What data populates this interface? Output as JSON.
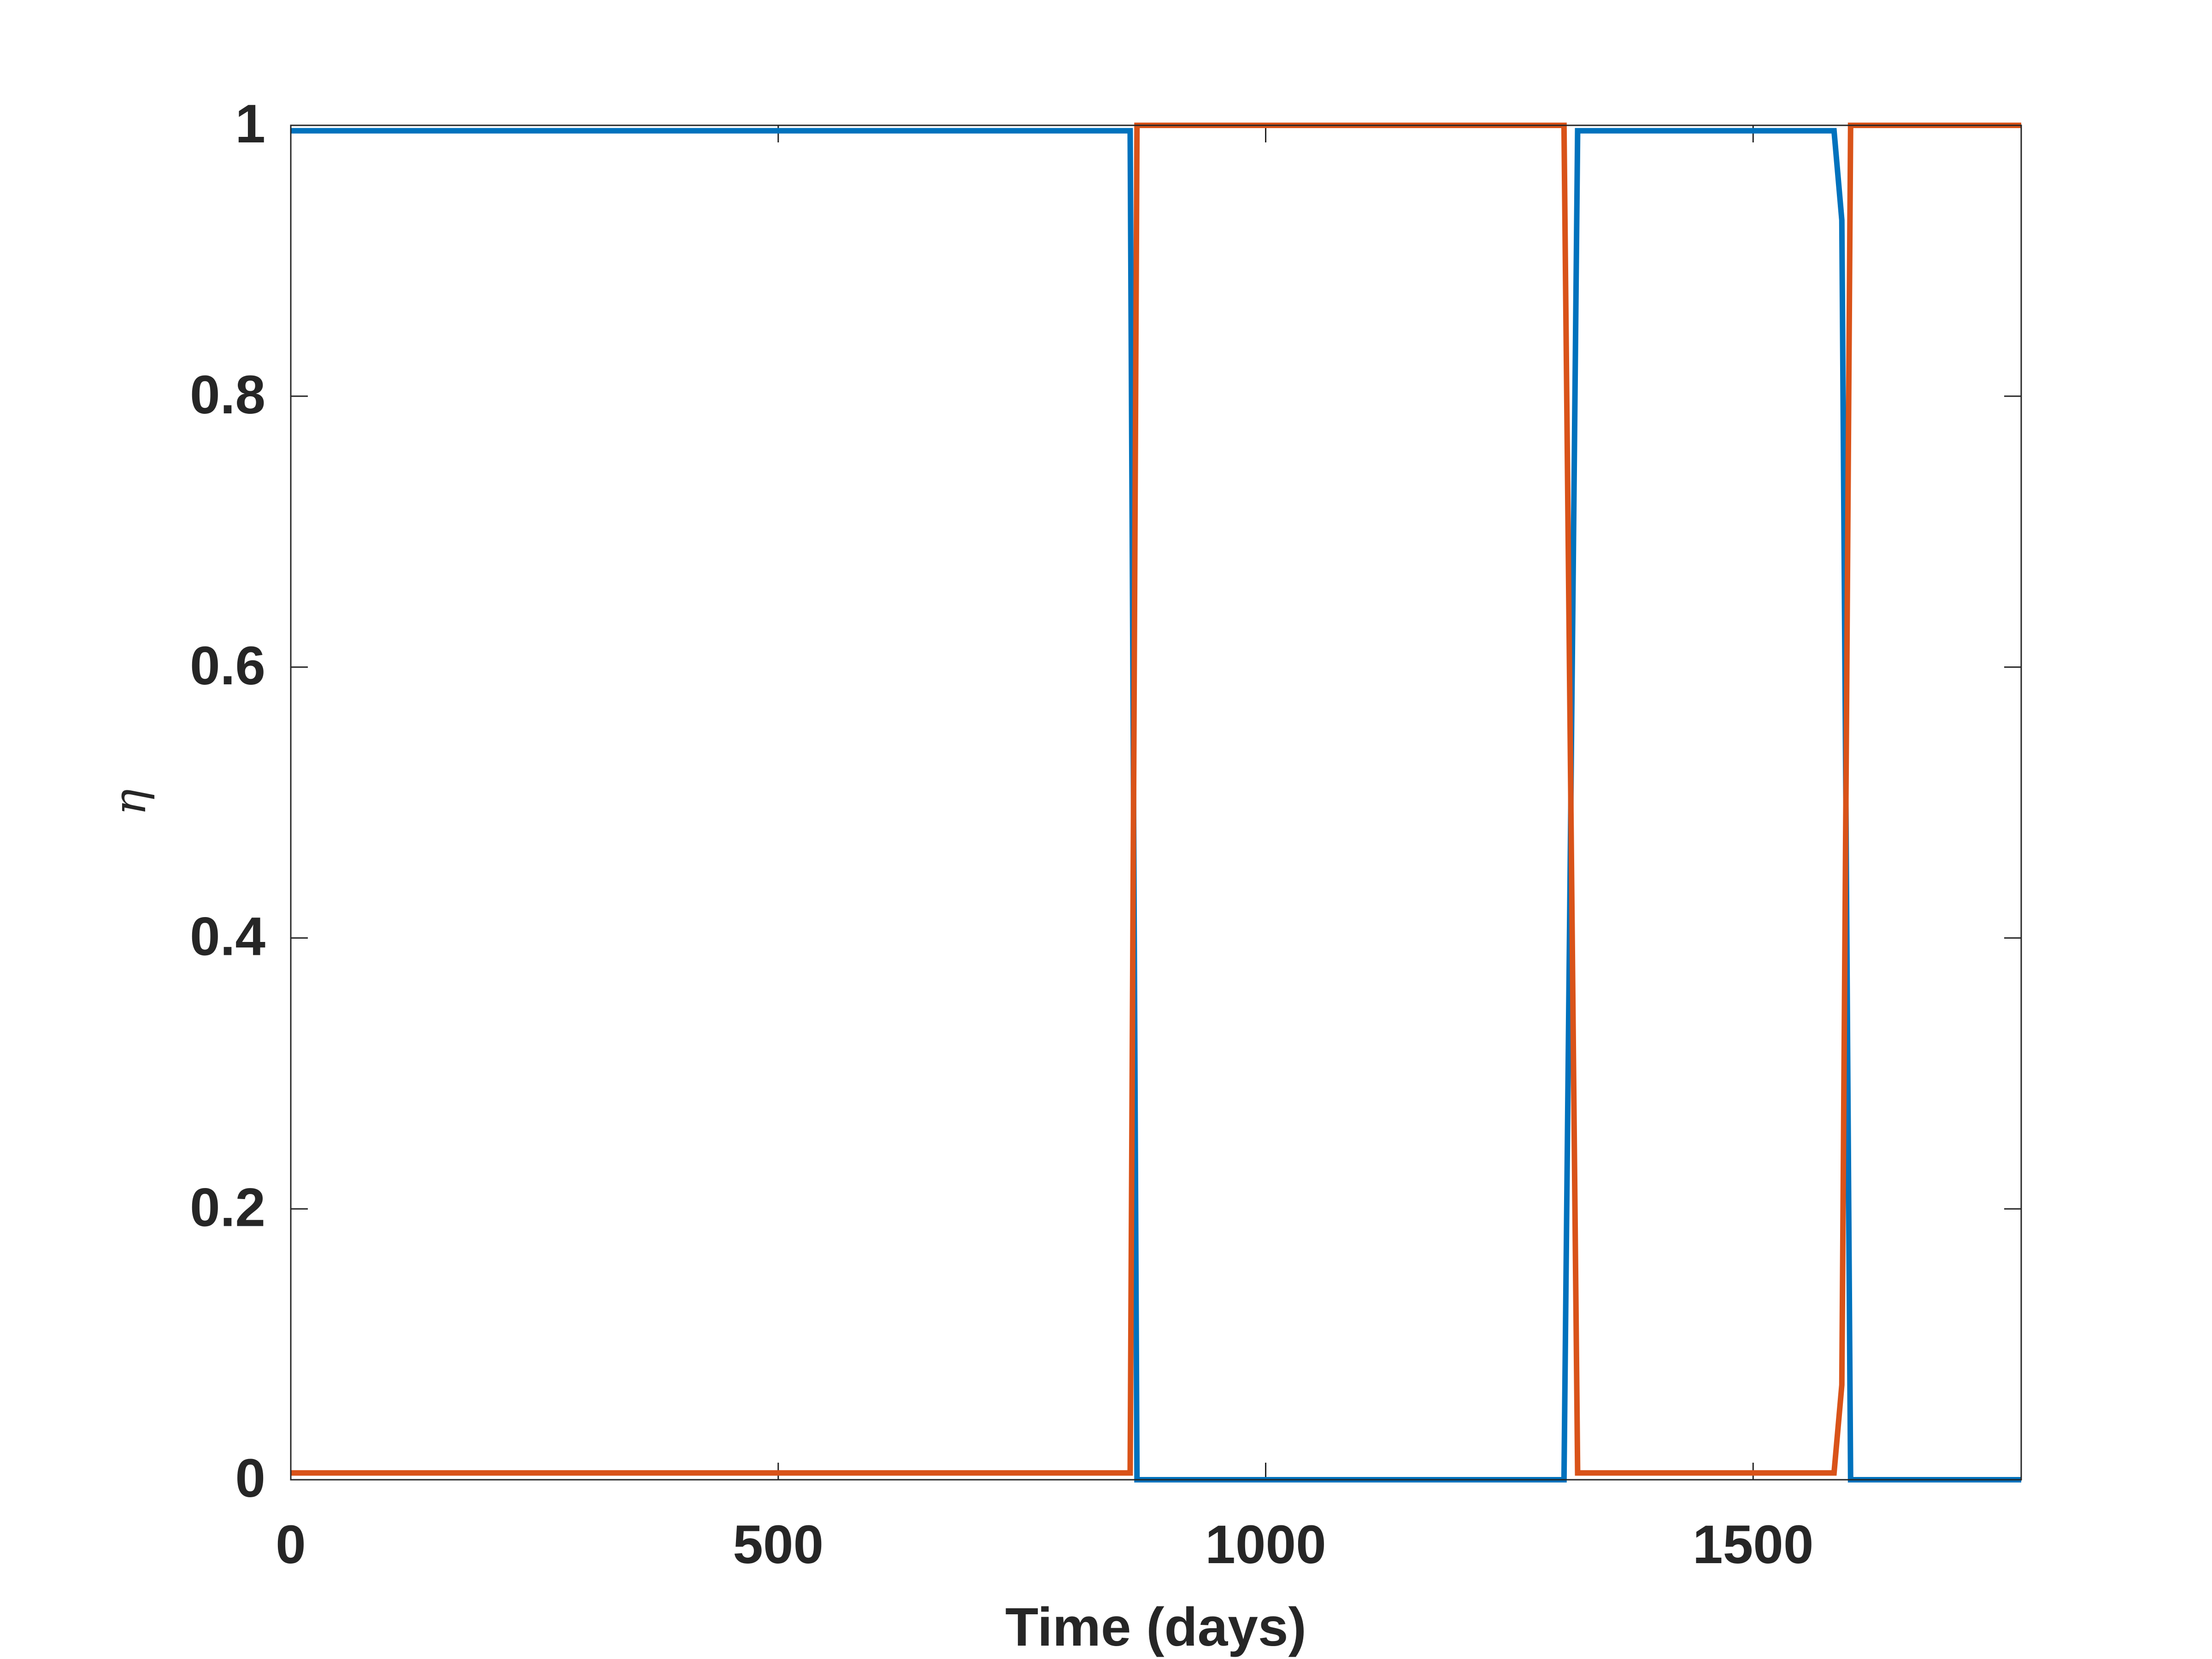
{
  "chart_data": {
    "type": "line",
    "x_label": "Time (days)",
    "y_label": "η",
    "x": [
      0,
      861,
      868,
      1306,
      1320,
      1583,
      1591,
      1600,
      1775
    ],
    "series": [
      {
        "color": "#0072BD",
        "values": [
          0.996,
          0.996,
          0,
          0,
          0.996,
          0.996,
          0.93,
          0,
          0
        ]
      },
      {
        "color": "#D95319",
        "values": [
          0.005,
          0.005,
          1,
          1,
          0.005,
          0.005,
          0.07,
          1,
          1
        ]
      }
    ],
    "xlim": [
      0,
      1775
    ],
    "ylim": [
      0,
      1
    ],
    "xticks": [
      0,
      500,
      1000,
      1500
    ],
    "yticks": [
      0,
      0.2,
      0.4,
      0.6,
      0.8,
      1
    ],
    "grid": false
  }
}
